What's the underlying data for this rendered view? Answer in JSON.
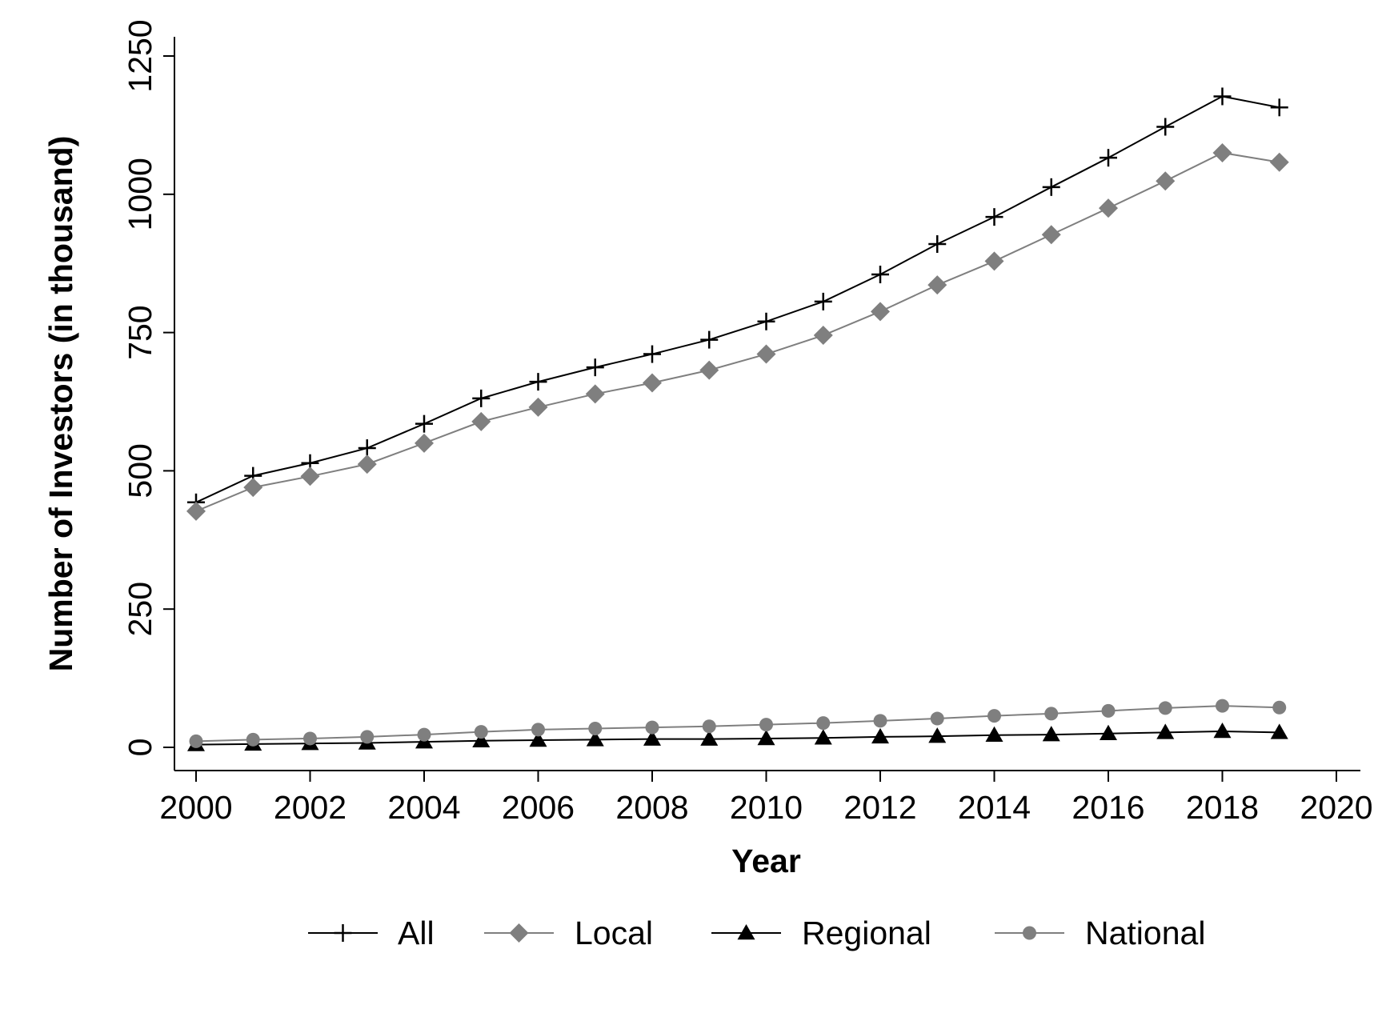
{
  "chart_data": {
    "type": "line",
    "title": "",
    "xlabel": "Year",
    "ylabel": "Number of Investors (in thousand)",
    "xlim": [
      2000,
      2020
    ],
    "ylim": [
      0,
      1250
    ],
    "x_ticks": [
      "2000",
      "2002",
      "2004",
      "2006",
      "2008",
      "2010",
      "2012",
      "2014",
      "2016",
      "2018",
      "2020"
    ],
    "y_ticks": [
      "0",
      "250",
      "500",
      "750",
      "1000",
      "1250"
    ],
    "grid": false,
    "legend_position": "bottom",
    "x": [
      2000,
      2001,
      2002,
      2003,
      2004,
      2005,
      2006,
      2007,
      2008,
      2009,
      2010,
      2011,
      2012,
      2013,
      2014,
      2015,
      2016,
      2017,
      2018,
      2019
    ],
    "series": [
      {
        "name": "All",
        "marker": "plus",
        "color": "#000000",
        "values": [
          443,
          491,
          514,
          541,
          585,
          631,
          661,
          687,
          711,
          737,
          770,
          806,
          855,
          910,
          959,
          1013,
          1066,
          1122,
          1177,
          1157
        ]
      },
      {
        "name": "Local",
        "marker": "diamond",
        "color": "#7f7f7f",
        "values": [
          427,
          470,
          490,
          512,
          550,
          589,
          615,
          639,
          659,
          682,
          711,
          745,
          788,
          836,
          879,
          927,
          975,
          1024,
          1075,
          1058
        ]
      },
      {
        "name": "Regional",
        "marker": "triangle",
        "color": "#000000",
        "values": [
          5,
          6,
          7,
          8,
          10,
          12,
          13,
          14,
          15,
          15,
          16,
          17,
          19,
          20,
          22,
          23,
          25,
          27,
          29,
          27
        ]
      },
      {
        "name": "National",
        "marker": "circle",
        "color": "#7f7f7f",
        "values": [
          11,
          14,
          16,
          19,
          23,
          28,
          32,
          34,
          36,
          38,
          41,
          44,
          48,
          52,
          57,
          61,
          66,
          71,
          75,
          72
        ]
      }
    ]
  }
}
